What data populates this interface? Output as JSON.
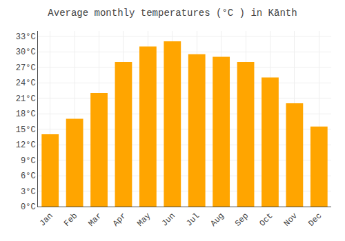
{
  "chart_data": {
    "type": "bar",
    "title": "Average monthly temperatures (°C ) in Kānth",
    "categories": [
      "Jan",
      "Feb",
      "Mar",
      "Apr",
      "May",
      "Jun",
      "Jul",
      "Aug",
      "Sep",
      "Oct",
      "Nov",
      "Dec"
    ],
    "values": [
      14.0,
      17.0,
      22.0,
      28.0,
      31.0,
      32.0,
      29.5,
      29.0,
      28.0,
      25.0,
      20.0,
      15.5
    ],
    "color": "#FFA500",
    "ylim": [
      0,
      34
    ],
    "yticks": [
      {
        "value": 0,
        "label": "0°C"
      },
      {
        "value": 3,
        "label": "3°C"
      },
      {
        "value": 6,
        "label": "6°C"
      },
      {
        "value": 9,
        "label": "9°C"
      },
      {
        "value": 12,
        "label": "12°C"
      },
      {
        "value": 15,
        "label": "15°C"
      },
      {
        "value": 18,
        "label": "18°C"
      },
      {
        "value": 21,
        "label": "21°C"
      },
      {
        "value": 24,
        "label": "24°C"
      },
      {
        "value": 27,
        "label": "27°C"
      },
      {
        "value": 30,
        "label": "30°C"
      },
      {
        "value": 33,
        "label": "33°C"
      }
    ],
    "grid": true
  }
}
